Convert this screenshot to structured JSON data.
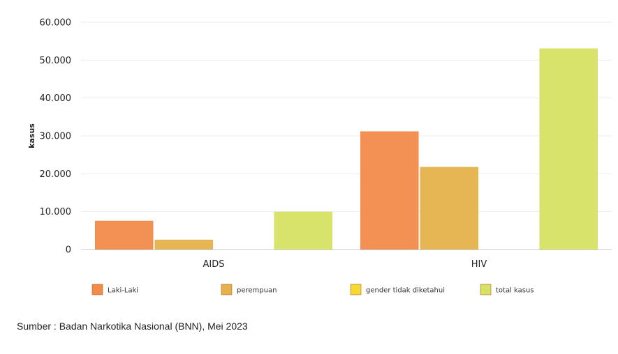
{
  "chart_data": {
    "type": "bar",
    "categories": [
      "AIDS",
      "HIV"
    ],
    "series": [
      {
        "name": "Laki-Laki",
        "color": "#f28b4c",
        "values": [
          7500,
          31100
        ]
      },
      {
        "name": "perempuan",
        "color": "#e5b24c",
        "values": [
          2500,
          21700
        ]
      },
      {
        "name": "gender tidak diketahui",
        "color": "#f5d833",
        "values": [
          0,
          0
        ]
      },
      {
        "name": "total kasus",
        "color": "#d6e263",
        "values": [
          9900,
          53000
        ]
      }
    ],
    "ylabel": "kasus",
    "ylim": [
      0,
      60000
    ],
    "yticks": [
      {
        "value": 0,
        "label": "0"
      },
      {
        "value": 10000,
        "label": "10.000"
      },
      {
        "value": 20000,
        "label": "20.000"
      },
      {
        "value": 30000,
        "label": "30.000"
      },
      {
        "value": 40000,
        "label": "40.000"
      },
      {
        "value": 50000,
        "label": "50.000"
      },
      {
        "value": 60000,
        "label": "60.000"
      }
    ],
    "grid": true,
    "legend_position": "bottom"
  },
  "footer": {
    "source": "Sumber : Badan Narkotika Nasional (BNN), Mei 2023"
  }
}
